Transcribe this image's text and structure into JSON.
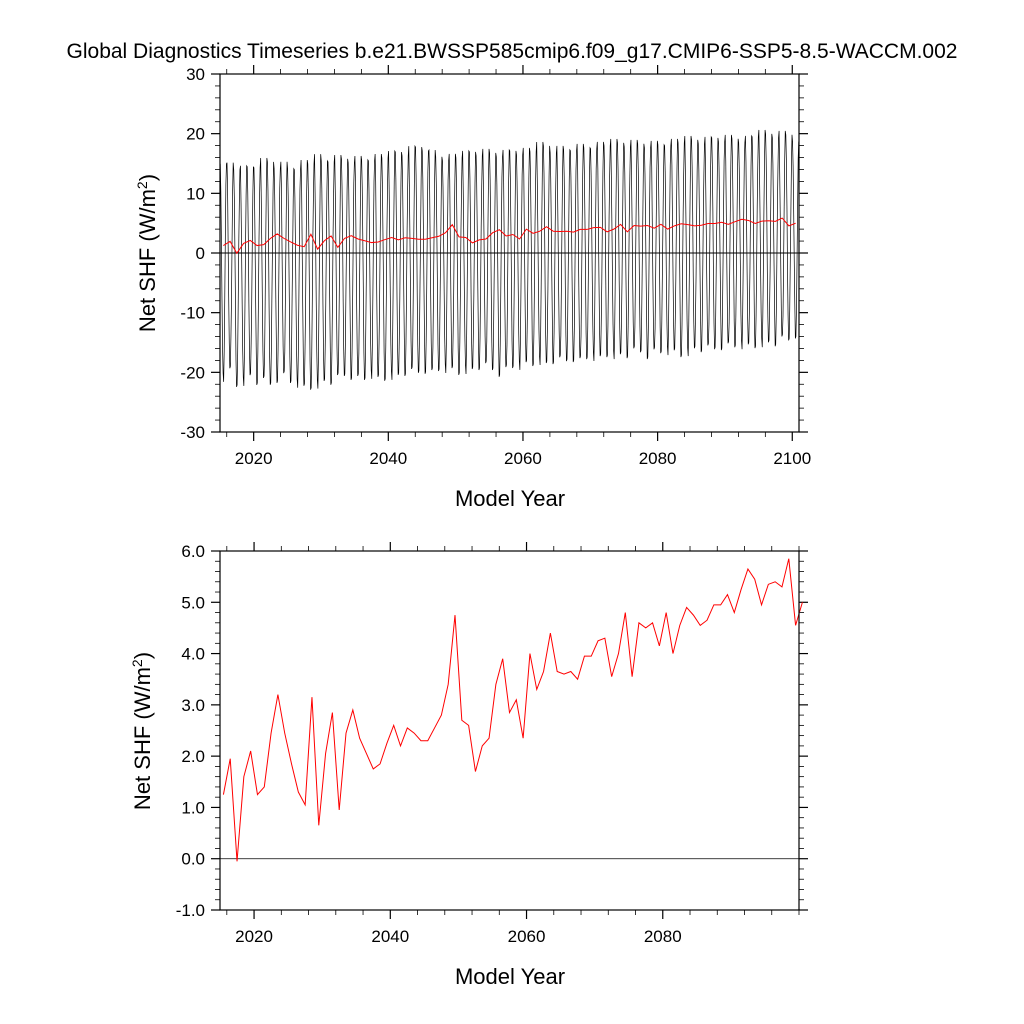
{
  "title": "Global Diagnostics Timeseries b.e21.BWSSP585cmip6.f09_g17.CMIP6-SSP5-8.5-WACCM.002",
  "colors": {
    "monthly": "#000000",
    "annual": "#ff0000",
    "zero_line": "#000000"
  },
  "chart_data": [
    {
      "type": "line",
      "xlabel": "Model Year",
      "ylabel_main": "Net SHF (W/m",
      "ylabel_sup": "2",
      "ylabel_tail": ")",
      "xlim": [
        2015,
        2101
      ],
      "ylim": [
        -30,
        30
      ],
      "xticks": [
        2020,
        2040,
        2060,
        2080,
        2100
      ],
      "xtick_labels": [
        "2020",
        "2040",
        "2060",
        "2080",
        "2100"
      ],
      "yticks": [
        -30,
        -20,
        -10,
        0,
        10,
        20,
        30
      ],
      "ytick_labels": [
        "-30",
        "-20",
        "-10",
        "0",
        "10",
        "20",
        "30"
      ],
      "reference_line": 0,
      "series": [
        {
          "style": "monthly-seasonal",
          "start_year": 2015,
          "amplitude_max": [
            16.5,
            15.5,
            15.0,
            14.5,
            15.0,
            15.5,
            16.0,
            16.0,
            15.5,
            15.5,
            15.0,
            15.5,
            16.0,
            16.0,
            16.5,
            16.0,
            16.5,
            16.5,
            16.5,
            16.5,
            16.5,
            16.5,
            17.0,
            17.0,
            17.0,
            17.0,
            17.5,
            17.5,
            18.0,
            18.5,
            18.5,
            17.5,
            17.0,
            17.0,
            17.0,
            17.0,
            17.0,
            17.5,
            17.5,
            17.5,
            17.5,
            17.5,
            17.5,
            18.0,
            18.0,
            18.0,
            18.0,
            18.5,
            18.5,
            18.0,
            18.0,
            18.0,
            18.5,
            18.5,
            18.5,
            19.0,
            19.0,
            19.0,
            19.0,
            19.0,
            19.0,
            19.0,
            19.0,
            19.0,
            19.0,
            19.0,
            19.5,
            19.5,
            19.5,
            19.5,
            19.5,
            19.5,
            19.5,
            20.0,
            20.0,
            20.0,
            20.0,
            20.0,
            20.0,
            20.5,
            20.5,
            20.5,
            20.5,
            20.5,
            20.5,
            20.0
          ],
          "amplitude_min": [
            -21.5,
            -20.0,
            -22.5,
            -22.0,
            -21.0,
            -22.0,
            -22.0,
            -22.5,
            -21.5,
            -21.0,
            -22.0,
            -22.5,
            -23.0,
            -23.0,
            -22.5,
            -22.0,
            -22.0,
            -21.5,
            -21.0,
            -21.0,
            -21.5,
            -21.5,
            -21.0,
            -21.5,
            -21.5,
            -21.0,
            -21.0,
            -20.5,
            -20.5,
            -20.5,
            -20.0,
            -20.5,
            -20.0,
            -20.0,
            -20.0,
            -20.5,
            -20.0,
            -20.0,
            -19.5,
            -19.5,
            -20.0,
            -20.5,
            -20.0,
            -19.5,
            -19.5,
            -19.0,
            -19.0,
            -18.5,
            -19.0,
            -18.5,
            -18.5,
            -18.5,
            -18.0,
            -18.5,
            -18.0,
            -18.0,
            -18.0,
            -17.5,
            -17.5,
            -17.5,
            -17.5,
            -17.0,
            -17.0,
            -17.5,
            -17.0,
            -17.0,
            -17.0,
            -17.0,
            -17.5,
            -17.0,
            -16.5,
            -16.5,
            -16.5,
            -16.5,
            -16.0,
            -16.0,
            -16.0,
            -16.0,
            -16.0,
            -16.0,
            -15.5,
            -15.5,
            -15.5,
            -15.0,
            -15.0,
            -14.0
          ]
        },
        {
          "style": "annual",
          "years": [
            2015,
            2016,
            2017,
            2018,
            2019,
            2020,
            2021,
            2022,
            2023,
            2024,
            2025,
            2026,
            2027,
            2028,
            2029,
            2030,
            2031,
            2032,
            2033,
            2034,
            2035,
            2036,
            2037,
            2038,
            2039,
            2040,
            2041,
            2042,
            2043,
            2044,
            2045,
            2046,
            2047,
            2048,
            2049,
            2050,
            2051,
            2052,
            2053,
            2054,
            2055,
            2056,
            2057,
            2058,
            2059,
            2060,
            2061,
            2062,
            2063,
            2064,
            2065,
            2066,
            2067,
            2068,
            2069,
            2070,
            2071,
            2072,
            2073,
            2074,
            2075,
            2076,
            2077,
            2078,
            2079,
            2080,
            2081,
            2082,
            2083,
            2084,
            2085,
            2086,
            2087,
            2088,
            2089,
            2090,
            2091,
            2092,
            2093,
            2094,
            2095,
            2096,
            2097,
            2098,
            2099,
            2100
          ],
          "values": [
            1.25,
            1.95,
            -0.05,
            1.6,
            2.1,
            1.25,
            1.4,
            2.45,
            3.2,
            2.45,
            1.85,
            1.3,
            1.05,
            3.15,
            0.65,
            2.05,
            2.85,
            0.95,
            2.45,
            2.9,
            2.35,
            2.05,
            1.75,
            1.85,
            2.25,
            2.6,
            2.2,
            2.55,
            2.45,
            2.3,
            2.3,
            2.55,
            2.8,
            3.4,
            4.75,
            2.7,
            2.6,
            1.7,
            2.2,
            2.35,
            3.4,
            3.9,
            2.85,
            3.1,
            2.35,
            4.0,
            3.3,
            3.65,
            4.4,
            3.65,
            3.6,
            3.65,
            3.5,
            3.95,
            3.95,
            4.25,
            4.3,
            3.55,
            4.0,
            4.8,
            3.55,
            4.6,
            4.5,
            4.6,
            4.15,
            4.8,
            4.0,
            4.55,
            4.9,
            4.75,
            4.55,
            4.65,
            4.95,
            4.95,
            5.15,
            4.8,
            5.25,
            5.65,
            5.45,
            4.95,
            5.35,
            5.4,
            5.3,
            5.85,
            4.55,
            5.0
          ]
        }
      ]
    },
    {
      "type": "line",
      "xlabel": "Model Year",
      "ylabel_main": "Net SHF (W/m",
      "ylabel_sup": "2",
      "ylabel_tail": ")",
      "xlim": [
        2015,
        2100
      ],
      "ylim": [
        -1,
        6
      ],
      "xticks": [
        2020,
        2040,
        2060,
        2080
      ],
      "xtick_labels": [
        "2020",
        "2040",
        "2060",
        "2080"
      ],
      "yticks": [
        -1,
        0,
        1,
        2,
        3,
        4,
        5,
        6
      ],
      "ytick_labels": [
        "-1.0",
        "0.0",
        "1.0",
        "2.0",
        "3.0",
        "4.0",
        "5.0",
        "6.0"
      ],
      "reference_line": 0,
      "series": [
        {
          "style": "annual",
          "years": [
            2015,
            2016,
            2017,
            2018,
            2019,
            2020,
            2021,
            2022,
            2023,
            2024,
            2025,
            2026,
            2027,
            2028,
            2029,
            2030,
            2031,
            2032,
            2033,
            2034,
            2035,
            2036,
            2037,
            2038,
            2039,
            2040,
            2041,
            2042,
            2043,
            2044,
            2045,
            2046,
            2047,
            2048,
            2049,
            2050,
            2051,
            2052,
            2053,
            2054,
            2055,
            2056,
            2057,
            2058,
            2059,
            2060,
            2061,
            2062,
            2063,
            2064,
            2065,
            2066,
            2067,
            2068,
            2069,
            2070,
            2071,
            2072,
            2073,
            2074,
            2075,
            2076,
            2077,
            2078,
            2079,
            2080,
            2081,
            2082,
            2083,
            2084,
            2085,
            2086,
            2087,
            2088,
            2089,
            2090,
            2091,
            2092,
            2093,
            2094,
            2095,
            2096,
            2097,
            2098,
            2099,
            2100
          ],
          "values": [
            1.25,
            1.95,
            -0.05,
            1.6,
            2.1,
            1.25,
            1.4,
            2.45,
            3.2,
            2.45,
            1.85,
            1.3,
            1.05,
            3.15,
            0.65,
            2.05,
            2.85,
            0.95,
            2.45,
            2.9,
            2.35,
            2.05,
            1.75,
            1.85,
            2.25,
            2.6,
            2.2,
            2.55,
            2.45,
            2.3,
            2.3,
            2.55,
            2.8,
            3.4,
            4.75,
            2.7,
            2.6,
            1.7,
            2.2,
            2.35,
            3.4,
            3.9,
            2.85,
            3.1,
            2.35,
            4.0,
            3.3,
            3.65,
            4.4,
            3.65,
            3.6,
            3.65,
            3.5,
            3.95,
            3.95,
            4.25,
            4.3,
            3.55,
            4.0,
            4.8,
            3.55,
            4.6,
            4.5,
            4.6,
            4.15,
            4.8,
            4.0,
            4.55,
            4.9,
            4.75,
            4.55,
            4.65,
            4.95,
            4.95,
            5.15,
            4.8,
            5.25,
            5.65,
            5.45,
            4.95,
            5.35,
            5.4,
            5.3,
            5.85,
            4.55,
            5.0
          ]
        }
      ]
    }
  ]
}
